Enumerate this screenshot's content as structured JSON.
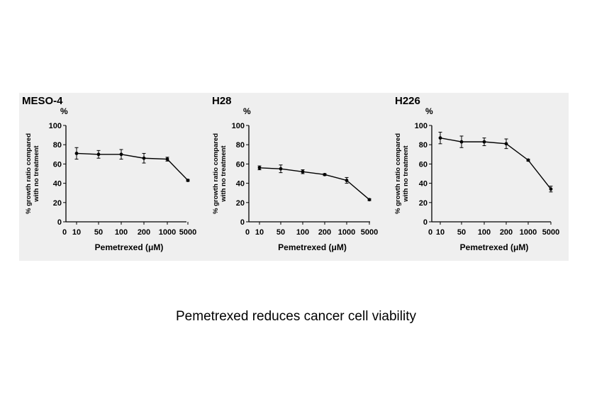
{
  "caption": "Pemetrexed reduces cancer cell viability",
  "chart_data": [
    {
      "type": "line",
      "title": "MESO-4",
      "unit": "%",
      "ylabel_lines": [
        "% growth ratio compared",
        "with no treatment"
      ],
      "xlabel": "Pemetrexed (μM)",
      "x_ticks": [
        "0",
        "10",
        "50",
        "100",
        "200",
        "1000",
        "5000"
      ],
      "y_ticks": [
        0,
        20,
        40,
        60,
        80,
        100
      ],
      "ylim": [
        0,
        100
      ],
      "x": [
        "10",
        "50",
        "100",
        "200",
        "1000",
        "5000"
      ],
      "values": [
        71,
        70,
        70,
        66,
        65,
        43
      ],
      "errors": [
        6,
        4,
        5,
        5,
        2,
        1
      ],
      "color": "#000000"
    },
    {
      "type": "line",
      "title": "H28",
      "unit": "%",
      "ylabel_lines": [
        "% growth ratio compared",
        "with no treatment"
      ],
      "xlabel": "Pemetrexed (μM)",
      "x_ticks": [
        "0",
        "10",
        "50",
        "100",
        "200",
        "1000",
        "5000"
      ],
      "y_ticks": [
        0,
        20,
        40,
        60,
        80,
        100
      ],
      "ylim": [
        0,
        100
      ],
      "x": [
        "10",
        "50",
        "100",
        "200",
        "1000",
        "5000"
      ],
      "values": [
        56,
        55,
        52,
        49,
        43,
        23
      ],
      "errors": [
        2,
        4,
        2,
        1,
        3,
        1
      ],
      "color": "#000000"
    },
    {
      "type": "line",
      "title": "H226",
      "unit": "%",
      "ylabel_lines": [
        "% growth ratio compared",
        "with no treatment"
      ],
      "xlabel": "Pemetrexed (μM)",
      "x_ticks": [
        "0",
        "10",
        "50",
        "100",
        "200",
        "1000",
        "5000"
      ],
      "y_ticks": [
        0,
        20,
        40,
        60,
        80,
        100
      ],
      "ylim": [
        0,
        100
      ],
      "x": [
        "10",
        "50",
        "100",
        "200",
        "1000",
        "5000"
      ],
      "values": [
        87,
        83,
        83,
        81,
        64,
        34
      ],
      "errors": [
        6,
        6,
        4,
        5,
        1,
        3
      ],
      "color": "#000000"
    }
  ]
}
